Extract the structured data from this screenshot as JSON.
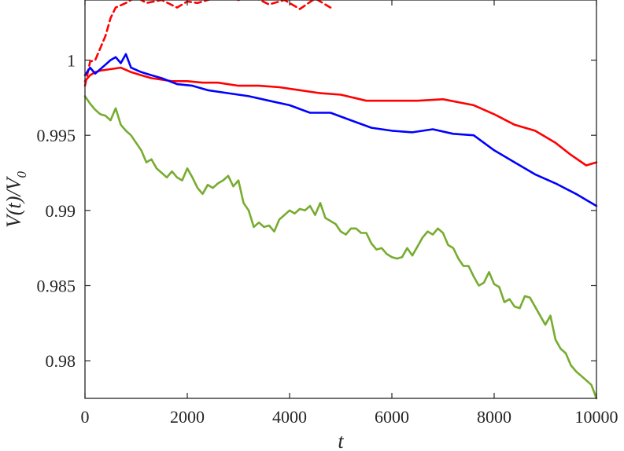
{
  "chart_data": {
    "type": "line",
    "xlabel": "t",
    "ylabel": "V(t)/V",
    "ylabel_sub": "0",
    "xlim": [
      0,
      10000
    ],
    "ylim": [
      0.9775,
      1.004
    ],
    "xticks": [
      0,
      2000,
      4000,
      6000,
      8000,
      10000
    ],
    "xtick_labels": [
      "0",
      "2000",
      "4000",
      "6000",
      "8000",
      "10000"
    ],
    "yticks": [
      0.98,
      0.985,
      0.99,
      0.995,
      1
    ],
    "ytick_labels": [
      "0.98",
      "0.985",
      "0.99",
      "0.995",
      "1"
    ],
    "grid": false,
    "legend": "none",
    "series": [
      {
        "color": "#ff0000",
        "style": "dashed",
        "x": [
          0,
          100,
          200,
          300,
          400,
          500,
          600,
          800,
          1000,
          1200,
          1500,
          1800,
          2000,
          2200,
          2500,
          2700,
          3000,
          3300,
          3600,
          3900,
          4200,
          4500,
          4800
        ],
        "y": [
          0.9983,
          0.9999,
          1.0,
          1.0008,
          1.0016,
          1.0028,
          1.0035,
          1.0038,
          1.0042,
          1.0038,
          1.004,
          1.0035,
          1.0039,
          1.0038,
          1.0041,
          1.0044,
          1.004,
          1.0042,
          1.0037,
          1.004,
          1.0034,
          1.0041,
          1.0035
        ]
      },
      {
        "color": "#ff0000",
        "style": "solid",
        "x": [
          0,
          100,
          200,
          300,
          500,
          700,
          900,
          1100,
          1300,
          1500,
          1700,
          2000,
          2300,
          2600,
          3000,
          3400,
          3800,
          4200,
          4600,
          5000,
          5500,
          6000,
          6500,
          7000,
          7300,
          7600,
          8000,
          8400,
          8800,
          9200,
          9500,
          9800,
          10000
        ],
        "y": [
          0.9986,
          0.999,
          0.9992,
          0.9993,
          0.9994,
          0.9995,
          0.9992,
          0.999,
          0.9988,
          0.9987,
          0.9986,
          0.9986,
          0.9985,
          0.9985,
          0.9983,
          0.9983,
          0.9982,
          0.998,
          0.9978,
          0.9977,
          0.9973,
          0.9973,
          0.9973,
          0.9974,
          0.9972,
          0.997,
          0.9964,
          0.9957,
          0.9953,
          0.9945,
          0.9937,
          0.993,
          0.9932
        ]
      },
      {
        "color": "#0000ff",
        "style": "solid",
        "x": [
          0,
          100,
          200,
          300,
          400,
          500,
          600,
          700,
          800,
          900,
          1100,
          1300,
          1500,
          1800,
          2100,
          2400,
          2800,
          3200,
          3600,
          4000,
          4400,
          4800,
          5200,
          5600,
          6000,
          6400,
          6800,
          7200,
          7600,
          8000,
          8400,
          8800,
          9200,
          9600,
          10000
        ],
        "y": [
          0.999,
          0.9995,
          0.9991,
          0.9994,
          0.9997,
          1.0,
          1.0002,
          0.9998,
          1.0004,
          0.9995,
          0.9992,
          0.999,
          0.9988,
          0.9984,
          0.9983,
          0.998,
          0.9978,
          0.9976,
          0.9973,
          0.997,
          0.9965,
          0.9965,
          0.996,
          0.9955,
          0.9953,
          0.9952,
          0.9954,
          0.9951,
          0.995,
          0.994,
          0.9932,
          0.9924,
          0.9918,
          0.9911,
          0.9903
        ]
      },
      {
        "color": "#77ac30",
        "style": "solid",
        "x": [
          0,
          100,
          200,
          300,
          400,
          500,
          600,
          700,
          800,
          900,
          1000,
          1100,
          1200,
          1300,
          1400,
          1500,
          1600,
          1700,
          1800,
          1900,
          2000,
          2100,
          2200,
          2300,
          2400,
          2500,
          2600,
          2700,
          2800,
          2900,
          3000,
          3100,
          3200,
          3300,
          3400,
          3500,
          3600,
          3700,
          3800,
          3900,
          4000,
          4100,
          4200,
          4300,
          4400,
          4500,
          4600,
          4700,
          4800,
          4900,
          5000,
          5100,
          5200,
          5300,
          5400,
          5500,
          5600,
          5700,
          5800,
          5900,
          6000,
          6100,
          6200,
          6300,
          6400,
          6500,
          6600,
          6700,
          6800,
          6900,
          7000,
          7100,
          7200,
          7300,
          7400,
          7500,
          7600,
          7700,
          7800,
          7900,
          8000,
          8100,
          8200,
          8300,
          8400,
          8500,
          8600,
          8700,
          8800,
          8900,
          9000,
          9100,
          9200,
          9300,
          9400,
          9500,
          9600,
          9700,
          9800,
          9900,
          10000
        ],
        "y": [
          0.9976,
          0.9971,
          0.9967,
          0.9964,
          0.9963,
          0.996,
          0.9968,
          0.9957,
          0.9953,
          0.995,
          0.9945,
          0.994,
          0.9932,
          0.9934,
          0.9928,
          0.9925,
          0.9922,
          0.9926,
          0.9922,
          0.992,
          0.9928,
          0.9922,
          0.9915,
          0.9911,
          0.9917,
          0.9915,
          0.9918,
          0.992,
          0.9923,
          0.9916,
          0.992,
          0.9905,
          0.99,
          0.9889,
          0.9892,
          0.9889,
          0.989,
          0.9886,
          0.9894,
          0.9897,
          0.99,
          0.9898,
          0.9901,
          0.99,
          0.9903,
          0.9897,
          0.9905,
          0.9895,
          0.9893,
          0.9891,
          0.9886,
          0.9884,
          0.9888,
          0.9888,
          0.9885,
          0.9885,
          0.9878,
          0.9874,
          0.9875,
          0.9871,
          0.9869,
          0.9868,
          0.9869,
          0.9875,
          0.987,
          0.9876,
          0.9882,
          0.9886,
          0.9884,
          0.9888,
          0.9885,
          0.9877,
          0.9875,
          0.9868,
          0.9863,
          0.9863,
          0.9856,
          0.985,
          0.9852,
          0.9859,
          0.9851,
          0.9849,
          0.9839,
          0.9841,
          0.9836,
          0.9835,
          0.9843,
          0.9842,
          0.9836,
          0.983,
          0.9824,
          0.983,
          0.9814,
          0.9808,
          0.9805,
          0.9797,
          0.9793,
          0.979,
          0.9787,
          0.9784,
          0.9775
        ]
      }
    ]
  }
}
